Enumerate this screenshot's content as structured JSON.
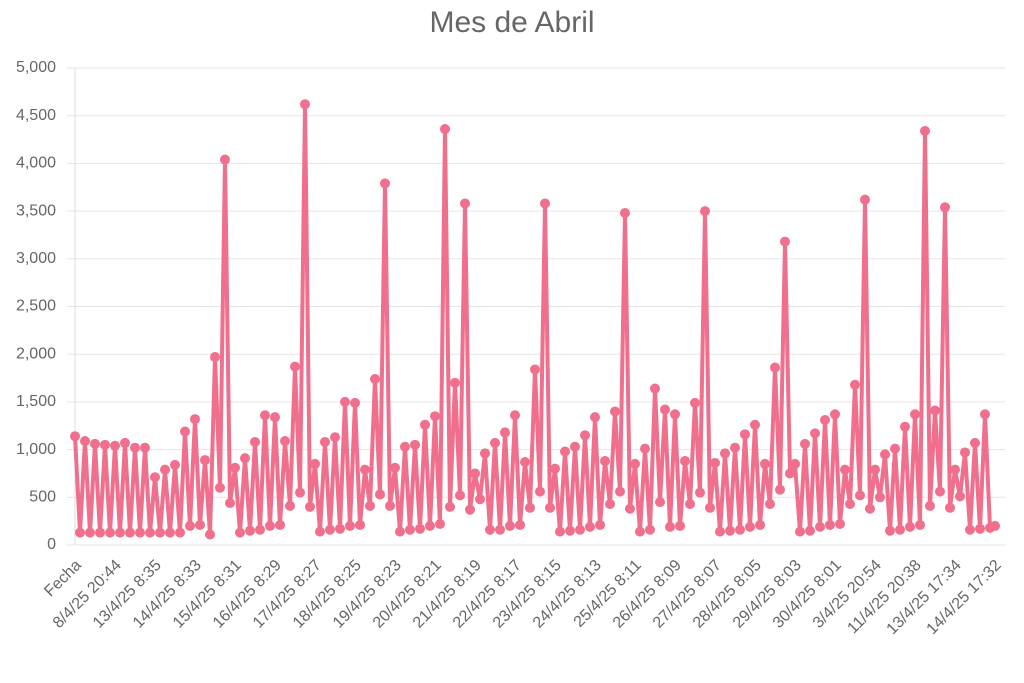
{
  "chart_data": {
    "type": "line",
    "title": "Mes de Abril",
    "categories": [
      "Fecha",
      null,
      null,
      null,
      null,
      null,
      null,
      null,
      "8/4/25 20:44",
      null,
      null,
      null,
      null,
      null,
      null,
      null,
      "13/4/25 8:35",
      null,
      null,
      null,
      null,
      null,
      null,
      null,
      "14/4/25 8:33",
      null,
      null,
      null,
      null,
      null,
      null,
      null,
      "15/4/25 8:31",
      null,
      null,
      null,
      null,
      null,
      null,
      null,
      "16/4/25 8:29",
      null,
      null,
      null,
      null,
      null,
      null,
      null,
      "17/4/25 8:27",
      null,
      null,
      null,
      null,
      null,
      null,
      null,
      "18/4/25 8:25",
      null,
      null,
      null,
      null,
      null,
      null,
      null,
      "19/4/25 8:23",
      null,
      null,
      null,
      null,
      null,
      null,
      null,
      "20/4/25 8:21",
      null,
      null,
      null,
      null,
      null,
      null,
      null,
      "21/4/25 8:19",
      null,
      null,
      null,
      null,
      null,
      null,
      null,
      "22/4/25 8:17",
      null,
      null,
      null,
      null,
      null,
      null,
      null,
      "23/4/25 8:15",
      null,
      null,
      null,
      null,
      null,
      null,
      null,
      "24/4/25 8:13",
      null,
      null,
      null,
      null,
      null,
      null,
      null,
      "25/4/25 8:11",
      null,
      null,
      null,
      null,
      null,
      null,
      null,
      "26/4/25 8:09",
      null,
      null,
      null,
      null,
      null,
      null,
      null,
      "27/4/25 8:07",
      null,
      null,
      null,
      null,
      null,
      null,
      null,
      "28/4/25 8:05",
      null,
      null,
      null,
      null,
      null,
      null,
      null,
      "29/4/25 8:03",
      null,
      null,
      null,
      null,
      null,
      null,
      null,
      "30/4/25 8:01",
      null,
      null,
      null,
      null,
      null,
      null,
      null,
      "3/4/25 20:54",
      null,
      null,
      null,
      null,
      null,
      null,
      null,
      "11/4/25 20:38",
      null,
      null,
      null,
      null,
      null,
      null,
      null,
      "13/4/25 17:34",
      null,
      null,
      null,
      null,
      null,
      null,
      null,
      "14/4/25 17:32"
    ],
    "values": [
      1140,
      130,
      1090,
      130,
      1060,
      130,
      1050,
      130,
      1040,
      130,
      1070,
      130,
      1020,
      130,
      1020,
      130,
      710,
      130,
      790,
      130,
      840,
      130,
      1190,
      200,
      1320,
      210,
      890,
      110,
      1970,
      600,
      4040,
      440,
      810,
      130,
      910,
      150,
      1080,
      160,
      1360,
      200,
      1340,
      210,
      1090,
      410,
      1870,
      550,
      4620,
      400,
      850,
      140,
      1080,
      160,
      1130,
      170,
      1500,
      200,
      1490,
      210,
      790,
      410,
      1740,
      530,
      3790,
      410,
      810,
      140,
      1030,
      160,
      1050,
      170,
      1260,
      200,
      1350,
      220,
      4360,
      400,
      1700,
      520,
      3580,
      370,
      750,
      480,
      960,
      160,
      1070,
      160,
      1180,
      200,
      1360,
      210,
      870,
      390,
      1840,
      560,
      3580,
      390,
      800,
      140,
      980,
      150,
      1030,
      160,
      1150,
      190,
      1340,
      210,
      880,
      430,
      1400,
      560,
      3480,
      380,
      850,
      140,
      1010,
      160,
      1640,
      450,
      1420,
      190,
      1370,
      200,
      880,
      430,
      1490,
      550,
      3500,
      390,
      860,
      140,
      960,
      150,
      1020,
      160,
      1160,
      190,
      1260,
      210,
      850,
      430,
      1860,
      580,
      3180,
      750,
      850,
      140,
      1060,
      150,
      1170,
      190,
      1310,
      210,
      1370,
      220,
      790,
      430,
      1680,
      520,
      3620,
      380,
      790,
      500,
      950,
      150,
      1010,
      160,
      1240,
      190,
      1370,
      210,
      4340,
      410,
      1410,
      560,
      3540,
      390,
      790,
      510,
      970,
      160,
      1070,
      170,
      1370,
      180,
      200
    ],
    "color": "#ef6f8c",
    "ylim": [
      0,
      5000
    ],
    "yticks": [
      0,
      500,
      {
        "value": 1000,
        "label": "1,000"
      },
      {
        "value": 1500,
        "label": "1,500"
      },
      {
        "value": 2000,
        "label": "2,000"
      },
      {
        "value": 2500,
        "label": "2,500"
      },
      {
        "value": 3000,
        "label": "3,000"
      },
      {
        "value": 3500,
        "label": "3,500"
      },
      {
        "value": 4000,
        "label": "4,000"
      },
      {
        "value": 4500,
        "label": "4,500"
      },
      {
        "value": 5000,
        "label": "5,000"
      }
    ],
    "grid": true
  }
}
